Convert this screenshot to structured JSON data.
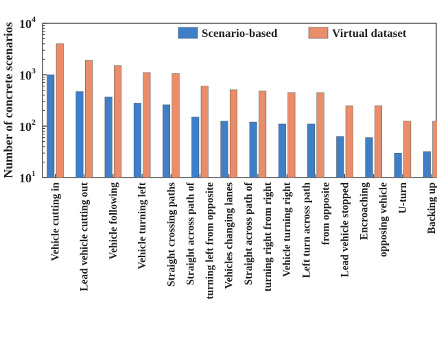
{
  "chart_data": {
    "type": "bar",
    "yscale": "log",
    "ylabel": "Number of concrete scenarios",
    "xlabel": "",
    "title": "",
    "ylim": [
      10,
      10000
    ],
    "yticks": [
      {
        "value": 10,
        "base": "10",
        "exp": "1"
      },
      {
        "value": 100,
        "base": "10",
        "exp": "2"
      },
      {
        "value": 1000,
        "base": "10",
        "exp": "3"
      },
      {
        "value": 10000,
        "base": "10",
        "exp": "4"
      }
    ],
    "legend_position": "top-right",
    "categories": [
      "Vehicle cutting in",
      "Lead vehicle cutting out",
      "Vehicle following",
      "Vehicle turning left",
      "Straight crossing paths",
      "Straight across path of turning left from opposite",
      "Vehicles changing lanes",
      "Straight across path of turning right from right",
      "Vehicle turning right",
      "Left turn across path from opposite",
      "Lead vehicle stopped",
      "Encroaching opposing vehicle",
      "U-turn",
      "Backing up"
    ],
    "category_lines": [
      [
        "Vehicle cutting in"
      ],
      [
        "Lead vehicle cutting out"
      ],
      [
        "Vehicle following"
      ],
      [
        "Vehicle turning left"
      ],
      [
        "Straight crossing paths"
      ],
      [
        "Straight across path of",
        "turning left from opposite"
      ],
      [
        "Vehicles changing lanes"
      ],
      [
        "Straight across path of",
        "turning right from right"
      ],
      [
        "Vehicle turning right"
      ],
      [
        "Left turn across path",
        "from opposite"
      ],
      [
        "Lead vehicle stopped"
      ],
      [
        "Encroaching",
        "opposing vehicle"
      ],
      [
        "U-turn"
      ],
      [
        "Backing up"
      ]
    ],
    "series": [
      {
        "name": "Scenario-based",
        "color": "#3f7fc8",
        "values": [
          1000,
          470,
          370,
          280,
          260,
          150,
          125,
          120,
          110,
          110,
          63,
          60,
          30,
          32
        ]
      },
      {
        "name": "Virtual dataset",
        "color": "#ea8d6a",
        "values": [
          4000,
          1900,
          1500,
          1100,
          1050,
          600,
          510,
          480,
          450,
          450,
          250,
          250,
          125,
          125
        ]
      }
    ]
  }
}
